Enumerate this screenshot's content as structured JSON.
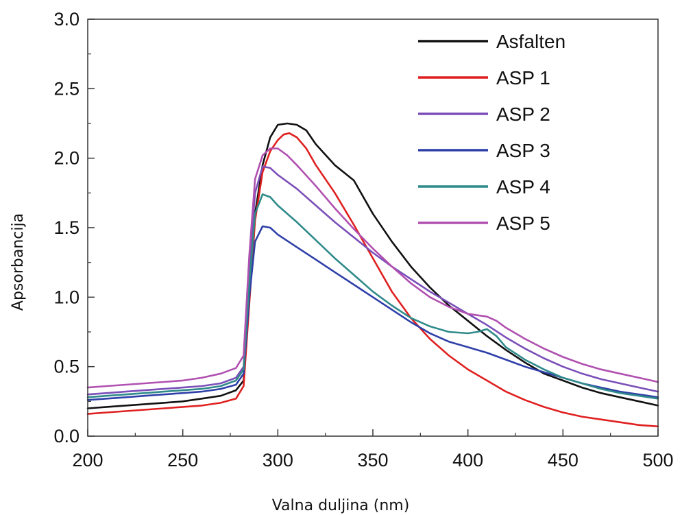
{
  "chart_data": {
    "type": "line",
    "title": "",
    "xlabel": "Valna duljina (nm)",
    "ylabel": "Apsorbancija",
    "xlim": [
      200,
      500
    ],
    "ylim": [
      0.0,
      3.0
    ],
    "xticks": [
      "200",
      "250",
      "300",
      "350",
      "400",
      "450",
      "500"
    ],
    "yticks": [
      "0.0",
      "0.5",
      "1.0",
      "1.5",
      "2.0",
      "2.5",
      "3.0"
    ],
    "grid": false,
    "legend_position": "top-right",
    "series": [
      {
        "name": "Asfalten",
        "color": "#111111",
        "x": [
          200,
          210,
          220,
          230,
          240,
          250,
          260,
          270,
          278,
          282,
          285,
          288,
          292,
          296,
          300,
          305,
          310,
          315,
          320,
          330,
          340,
          350,
          360,
          370,
          380,
          390,
          400,
          410,
          420,
          430,
          440,
          450,
          460,
          470,
          480,
          490,
          500
        ],
        "y": [
          0.2,
          0.21,
          0.22,
          0.23,
          0.24,
          0.25,
          0.27,
          0.29,
          0.33,
          0.4,
          1.0,
          1.6,
          1.95,
          2.15,
          2.24,
          2.25,
          2.24,
          2.2,
          2.1,
          1.95,
          1.84,
          1.6,
          1.4,
          1.22,
          1.07,
          0.94,
          0.83,
          0.72,
          0.62,
          0.53,
          0.45,
          0.4,
          0.35,
          0.31,
          0.28,
          0.25,
          0.22
        ]
      },
      {
        "name": "ASP 1",
        "color": "#e02020",
        "x": [
          200,
          210,
          220,
          230,
          240,
          250,
          260,
          270,
          278,
          282,
          285,
          288,
          292,
          296,
          300,
          303,
          306,
          310,
          315,
          320,
          330,
          340,
          350,
          360,
          370,
          380,
          390,
          400,
          410,
          420,
          430,
          440,
          450,
          460,
          470,
          480,
          490,
          500
        ],
        "y": [
          0.16,
          0.17,
          0.18,
          0.19,
          0.2,
          0.21,
          0.22,
          0.24,
          0.27,
          0.36,
          0.95,
          1.55,
          1.9,
          2.05,
          2.13,
          2.17,
          2.18,
          2.15,
          2.07,
          1.95,
          1.75,
          1.52,
          1.28,
          1.04,
          0.85,
          0.7,
          0.58,
          0.48,
          0.4,
          0.32,
          0.26,
          0.21,
          0.17,
          0.14,
          0.12,
          0.1,
          0.08,
          0.07
        ]
      },
      {
        "name": "ASP 2",
        "color": "#7a4fb8",
        "x": [
          200,
          210,
          220,
          230,
          240,
          250,
          260,
          270,
          278,
          282,
          285,
          288,
          292,
          296,
          300,
          310,
          320,
          330,
          340,
          350,
          360,
          370,
          380,
          390,
          400,
          410,
          420,
          430,
          440,
          450,
          460,
          470,
          480,
          490,
          500
        ],
        "y": [
          0.3,
          0.31,
          0.32,
          0.33,
          0.34,
          0.35,
          0.36,
          0.38,
          0.42,
          0.5,
          1.2,
          1.75,
          1.94,
          1.93,
          1.88,
          1.78,
          1.66,
          1.54,
          1.43,
          1.32,
          1.22,
          1.13,
          1.04,
          0.96,
          0.88,
          0.8,
          0.71,
          0.63,
          0.56,
          0.5,
          0.45,
          0.41,
          0.38,
          0.35,
          0.32
        ]
      },
      {
        "name": "ASP 3",
        "color": "#2e3fa8",
        "x": [
          200,
          210,
          220,
          230,
          240,
          250,
          260,
          270,
          278,
          282,
          285,
          288,
          292,
          296,
          300,
          310,
          320,
          330,
          340,
          350,
          360,
          370,
          380,
          390,
          400,
          410,
          420,
          430,
          440,
          450,
          460,
          470,
          480,
          490,
          500
        ],
        "y": [
          0.26,
          0.27,
          0.28,
          0.29,
          0.3,
          0.31,
          0.32,
          0.34,
          0.37,
          0.45,
          1.0,
          1.4,
          1.51,
          1.5,
          1.45,
          1.36,
          1.27,
          1.18,
          1.09,
          1.0,
          0.91,
          0.82,
          0.74,
          0.68,
          0.64,
          0.6,
          0.55,
          0.5,
          0.46,
          0.42,
          0.38,
          0.35,
          0.32,
          0.3,
          0.28
        ]
      },
      {
        "name": "ASP 4",
        "color": "#2f8a8a",
        "x": [
          200,
          210,
          220,
          230,
          240,
          250,
          260,
          270,
          278,
          282,
          285,
          288,
          292,
          296,
          300,
          310,
          320,
          330,
          340,
          350,
          360,
          370,
          380,
          390,
          400,
          405,
          410,
          415,
          420,
          430,
          440,
          450,
          460,
          470,
          480,
          490,
          500
        ],
        "y": [
          0.28,
          0.29,
          0.3,
          0.31,
          0.32,
          0.33,
          0.34,
          0.36,
          0.4,
          0.48,
          1.1,
          1.6,
          1.74,
          1.72,
          1.66,
          1.54,
          1.41,
          1.28,
          1.16,
          1.04,
          0.94,
          0.85,
          0.79,
          0.75,
          0.74,
          0.75,
          0.77,
          0.72,
          0.64,
          0.55,
          0.48,
          0.42,
          0.38,
          0.34,
          0.31,
          0.29,
          0.27
        ]
      },
      {
        "name": "ASP 5",
        "color": "#b050b0",
        "x": [
          200,
          210,
          220,
          230,
          240,
          250,
          260,
          270,
          278,
          282,
          285,
          288,
          292,
          296,
          300,
          305,
          310,
          320,
          330,
          340,
          350,
          360,
          370,
          380,
          390,
          400,
          405,
          410,
          415,
          420,
          430,
          440,
          450,
          460,
          470,
          480,
          490,
          500
        ],
        "y": [
          0.35,
          0.36,
          0.37,
          0.38,
          0.39,
          0.4,
          0.42,
          0.45,
          0.49,
          0.58,
          1.3,
          1.85,
          2.02,
          2.07,
          2.07,
          2.02,
          1.95,
          1.8,
          1.64,
          1.49,
          1.35,
          1.22,
          1.1,
          1.0,
          0.93,
          0.88,
          0.87,
          0.86,
          0.83,
          0.78,
          0.7,
          0.63,
          0.57,
          0.52,
          0.48,
          0.45,
          0.42,
          0.39
        ]
      }
    ]
  }
}
